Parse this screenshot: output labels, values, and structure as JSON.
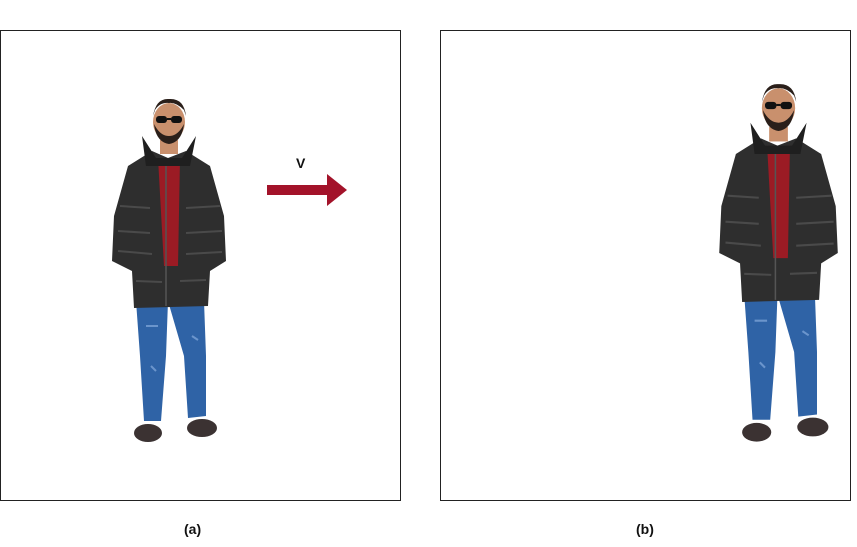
{
  "panels": [
    {
      "caption": "(a)"
    },
    {
      "caption": "(b)"
    }
  ],
  "velocity": {
    "label": "V",
    "arrow_color": "#a3132a",
    "direction": "right"
  },
  "person": {
    "jacket_color": "#2e2e2e",
    "shirt_color": "#9b1b24",
    "jeans_color": "#2f63a6",
    "shoe_color": "#3b3232",
    "skin_color": "#c9906d",
    "hair_color": "#2a1f1a"
  }
}
